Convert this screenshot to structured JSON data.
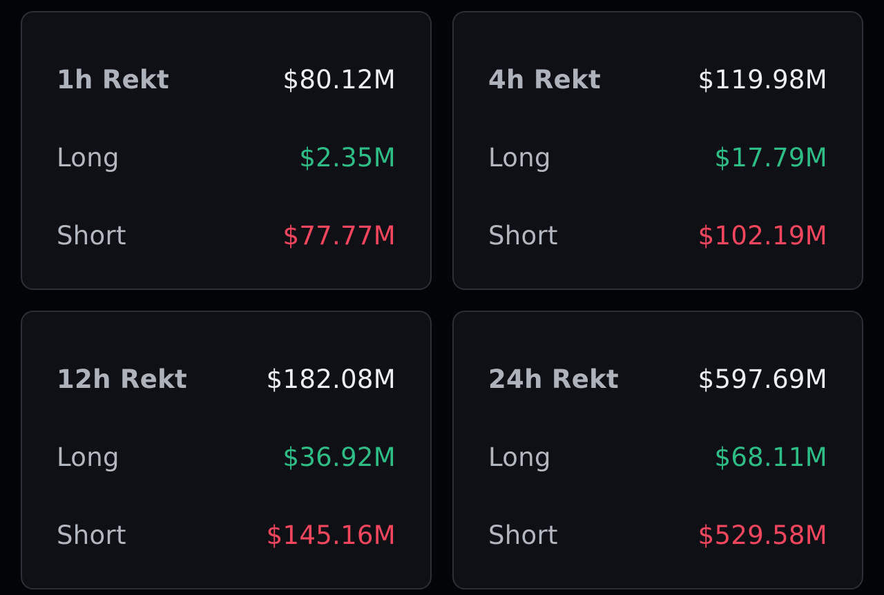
{
  "colors": {
    "background": "#030408",
    "card": "#0e1016",
    "border": "#2b2f37",
    "label": "#b3b7bf",
    "total": "#eef0f3",
    "long": "#2ebd85",
    "short": "#f6465d"
  },
  "cards": [
    {
      "title": "1h Rekt",
      "total": "$80.12M",
      "long_label": "Long",
      "long": "$2.35M",
      "short_label": "Short",
      "short": "$77.77M"
    },
    {
      "title": "4h Rekt",
      "total": "$119.98M",
      "long_label": "Long",
      "long": "$17.79M",
      "short_label": "Short",
      "short": "$102.19M"
    },
    {
      "title": "12h Rekt",
      "total": "$182.08M",
      "long_label": "Long",
      "long": "$36.92M",
      "short_label": "Short",
      "short": "$145.16M"
    },
    {
      "title": "24h Rekt",
      "total": "$597.69M",
      "long_label": "Long",
      "long": "$68.11M",
      "short_label": "Short",
      "short": "$529.58M"
    }
  ]
}
